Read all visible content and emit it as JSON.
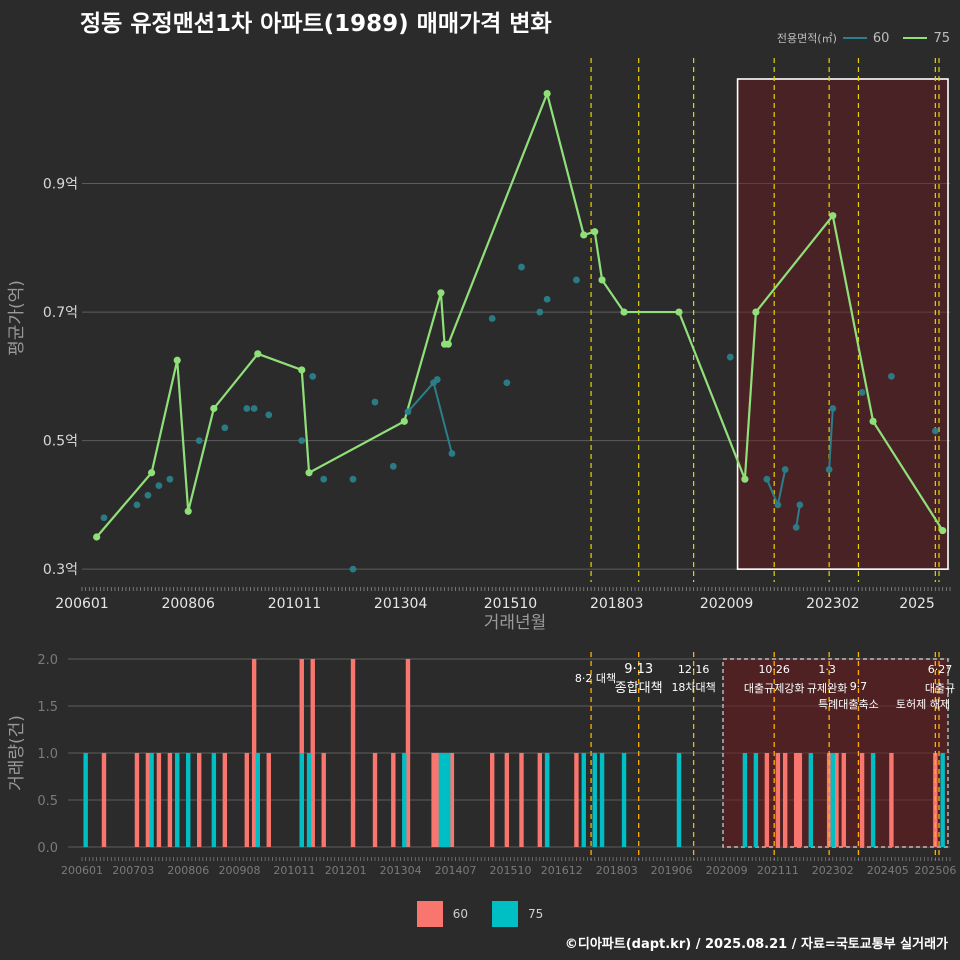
{
  "title": "정동 유정맨션1차 아파트(1989) 매매가격 변화",
  "legend_top": {
    "title": "전용면적(㎡)",
    "items": [
      {
        "label": "60",
        "color": "#2a7f8a"
      },
      {
        "label": "75",
        "color": "#90e07a"
      }
    ]
  },
  "legend_bottom": {
    "items": [
      {
        "label": "60",
        "color": "#f8766d"
      },
      {
        "label": "75",
        "color": "#00bfc4"
      }
    ]
  },
  "credit": "©디아파트(dapt.kr) / 2025.08.21 / 자료=국토교통부 실거래가",
  "chart_data": [
    {
      "type": "line",
      "name": "price",
      "xlabel": "거래년월",
      "ylabel": "평균가(억)",
      "x_ticks": [
        "200601",
        "200806",
        "201011",
        "201304",
        "201510",
        "201803",
        "202009",
        "202302",
        "2025"
      ],
      "y_ticks": [
        "0.3억",
        "0.5억",
        "0.7억",
        "0.9억"
      ],
      "ylim": [
        0.28,
        1.1
      ],
      "grid": true,
      "highlight_start": "2020-12",
      "policy_dates": [
        "2017-08",
        "2018-09",
        "2019-12",
        "2021-10",
        "2023-01",
        "2023-09",
        "2025-06",
        "2025-07"
      ],
      "series": [
        {
          "name": "75",
          "color": "#90e07a",
          "points": [
            [
              "2006-05",
              0.35
            ],
            [
              "2007-08",
              0.45
            ],
            [
              "2008-03",
              0.625
            ],
            [
              "2008-06",
              0.39
            ],
            [
              "2009-01",
              0.55
            ],
            [
              "2010-01",
              0.635
            ],
            [
              "2011-01",
              0.61
            ],
            [
              "2011-03",
              0.45
            ],
            [
              "2013-05",
              0.53
            ],
            [
              "2014-03",
              0.73
            ],
            [
              "2014-04",
              0.65
            ],
            [
              "2014-05",
              0.65
            ],
            [
              "2016-08",
              1.04
            ],
            [
              "2017-06",
              0.82
            ],
            [
              "2017-09",
              0.825
            ],
            [
              "2017-11",
              0.75
            ],
            [
              "2018-05",
              0.7
            ],
            [
              "2019-08",
              0.7
            ],
            [
              "2021-02",
              0.44
            ],
            [
              "2021-05",
              0.7
            ],
            [
              "2023-02",
              0.85
            ],
            [
              "2024-01",
              0.53
            ],
            [
              "2025-08",
              0.36
            ]
          ]
        },
        {
          "name": "60",
          "color": "#2a7f8a",
          "points": [
            [
              "2006-07",
              0.38
            ],
            [
              "2007-04",
              0.4
            ],
            [
              "2007-07",
              0.415
            ],
            [
              "2007-10",
              0.43
            ],
            [
              "2008-01",
              0.44
            ],
            [
              "2008-09",
              0.5
            ],
            [
              "2009-04",
              0.52
            ],
            [
              "2009-10",
              0.55
            ],
            [
              "2009-12",
              0.55
            ],
            [
              "2010-04",
              0.54
            ],
            [
              "2011-01",
              0.5
            ],
            [
              "2011-04",
              0.6
            ],
            [
              "2011-07",
              0.44
            ],
            [
              "2012-03",
              0.44
            ],
            [
              "2012-03",
              0.3
            ],
            [
              "2012-09",
              0.56
            ],
            [
              "2013-02",
              0.46
            ],
            [
              "2013-06",
              0.545
            ],
            [
              "2014-01",
              0.59
            ],
            [
              "2014-02",
              0.595
            ],
            [
              "2014-06",
              0.48
            ],
            [
              "2015-05",
              0.69
            ],
            [
              "2015-09",
              0.59
            ],
            [
              "2016-01",
              0.77
            ],
            [
              "2016-06",
              0.7
            ],
            [
              "2016-08",
              0.72
            ],
            [
              "2017-04",
              0.75
            ],
            [
              "2020-10",
              0.63
            ],
            [
              "2021-08",
              0.44
            ],
            [
              "2021-11",
              0.4
            ],
            [
              "2022-01",
              0.455
            ],
            [
              "2022-04",
              0.365
            ],
            [
              "2022-05",
              0.4
            ],
            [
              "2023-01",
              0.455
            ],
            [
              "2023-02",
              0.55
            ],
            [
              "2023-10",
              0.575
            ],
            [
              "2024-06",
              0.6
            ],
            [
              "2025-06",
              0.515
            ]
          ]
        }
      ]
    },
    {
      "type": "bar",
      "name": "volume",
      "ylabel": "거래량(건)",
      "x_ticks": [
        "200601",
        "200703",
        "200806",
        "200908",
        "201011",
        "201201",
        "201304",
        "201407",
        "201510",
        "201612",
        "201803",
        "201906",
        "202009",
        "202111",
        "202302",
        "202405",
        "202506"
      ],
      "y_ticks": [
        "0.0",
        "0.5",
        "1.0",
        "1.5",
        "2.0"
      ],
      "ylim": [
        0,
        2.0
      ],
      "grid": true,
      "policies": [
        {
          "date": "2017-08",
          "line1": "8·2 대책",
          "line2": ""
        },
        {
          "date": "2018-09",
          "line1": "9·13",
          "line2": "종합대책"
        },
        {
          "date": "2019-12",
          "line1": "12·16",
          "line2": "18차대책"
        },
        {
          "date": "2021-10",
          "line1": "10·26",
          "line2": "대출규제강화"
        },
        {
          "date": "2023-01",
          "line1": "1·3",
          "line2": "규제완화"
        },
        {
          "date": "2023-09",
          "line1": "",
          "line2": "9·7"
        },
        {
          "date": "2023-09",
          "line1": "",
          "line2": "특례대출축소"
        },
        {
          "date": "2025-06",
          "line1": "6·27",
          "line2": "대출규"
        },
        {
          "date": "2025-07",
          "line1": "",
          "line2": "토허제 해제"
        }
      ],
      "series": [
        {
          "name": "60",
          "color": "#f8766d",
          "bars": [
            [
              "2006-07",
              1
            ],
            [
              "2007-04",
              1
            ],
            [
              "2007-07",
              1
            ],
            [
              "2007-10",
              1
            ],
            [
              "2008-01",
              1
            ],
            [
              "2008-09",
              1
            ],
            [
              "2009-04",
              1
            ],
            [
              "2009-10",
              1
            ],
            [
              "2009-12",
              2
            ],
            [
              "2010-04",
              1
            ],
            [
              "2011-01",
              2
            ],
            [
              "2011-04",
              2
            ],
            [
              "2011-07",
              1
            ],
            [
              "2012-03",
              2
            ],
            [
              "2012-09",
              1
            ],
            [
              "2013-02",
              1
            ],
            [
              "2013-06",
              2
            ],
            [
              "2014-01",
              1
            ],
            [
              "2014-02",
              1
            ],
            [
              "2014-06",
              1
            ],
            [
              "2015-05",
              1
            ],
            [
              "2015-09",
              1
            ],
            [
              "2016-01",
              1
            ],
            [
              "2016-06",
              1
            ],
            [
              "2016-08",
              1
            ],
            [
              "2017-04",
              1
            ],
            [
              "2021-08",
              1
            ],
            [
              "2021-11",
              1
            ],
            [
              "2022-01",
              1
            ],
            [
              "2022-04",
              1
            ],
            [
              "2022-05",
              1
            ],
            [
              "2023-01",
              1
            ],
            [
              "2023-02",
              1
            ],
            [
              "2023-03",
              1
            ],
            [
              "2023-05",
              1
            ],
            [
              "2023-10",
              1
            ],
            [
              "2024-06",
              1
            ],
            [
              "2025-06",
              1
            ]
          ]
        },
        {
          "name": "75",
          "color": "#00bfc4",
          "bars": [
            [
              "2006-02",
              1
            ],
            [
              "2007-08",
              1
            ],
            [
              "2008-03",
              1
            ],
            [
              "2008-06",
              1
            ],
            [
              "2009-01",
              1
            ],
            [
              "2010-01",
              1
            ],
            [
              "2011-01",
              1
            ],
            [
              "2011-03",
              1
            ],
            [
              "2013-05",
              1
            ],
            [
              "2014-03",
              1
            ],
            [
              "2014-04",
              1
            ],
            [
              "2014-05",
              1
            ],
            [
              "2016-08",
              1
            ],
            [
              "2017-06",
              1
            ],
            [
              "2017-09",
              1
            ],
            [
              "2017-11",
              1
            ],
            [
              "2018-05",
              1
            ],
            [
              "2019-08",
              1
            ],
            [
              "2021-02",
              1
            ],
            [
              "2021-05",
              1
            ],
            [
              "2022-08",
              1
            ],
            [
              "2023-02",
              1
            ],
            [
              "2024-01",
              1
            ],
            [
              "2025-08",
              1
            ]
          ]
        }
      ]
    }
  ]
}
